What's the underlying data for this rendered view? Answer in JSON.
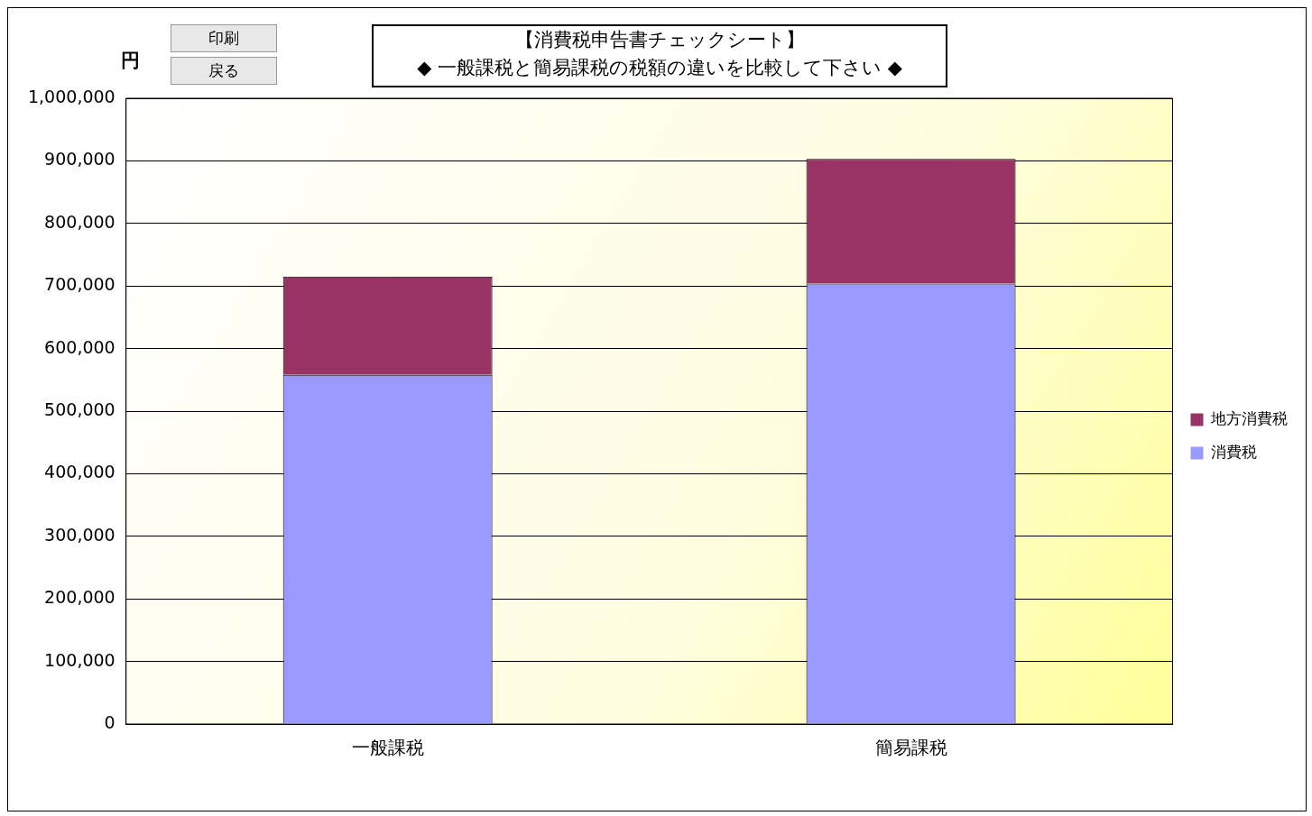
{
  "chart_data": {
    "type": "bar",
    "title": "【消費税申告書チェックシート】",
    "subtitle": "◆ 一般課税と簡易課税の税額の違いを比較して下さい ◆",
    "ylabel": "円",
    "annotations": [
      "印刷",
      "戻る"
    ],
    "categories": [
      "一般課税",
      "簡易課税"
    ],
    "series": [
      {
        "name": "消費税",
        "color": "#9999ff",
        "values": [
          558000,
          704000
        ]
      },
      {
        "name": "地方消費税",
        "color": "#993366",
        "values": [
          157000,
          199000
        ]
      }
    ],
    "stacked": true,
    "ylim": [
      0,
      1000000
    ],
    "yticks": [
      0,
      {
        "value": 100000,
        "label": "100,000"
      },
      {
        "value": 200000,
        "label": "200,000"
      },
      {
        "value": 300000,
        "label": "300,000"
      },
      {
        "value": 400000,
        "label": "400,000"
      },
      {
        "value": 500000,
        "label": "500,000"
      },
      {
        "value": 600000,
        "label": "600,000"
      },
      {
        "value": 700000,
        "label": "700,000"
      },
      {
        "value": 800000,
        "label": "800,000"
      },
      {
        "value": 900000,
        "label": "900,000"
      },
      {
        "value": 1000000,
        "label": "1,000,000"
      }
    ],
    "grid": "y",
    "legend": "right"
  }
}
